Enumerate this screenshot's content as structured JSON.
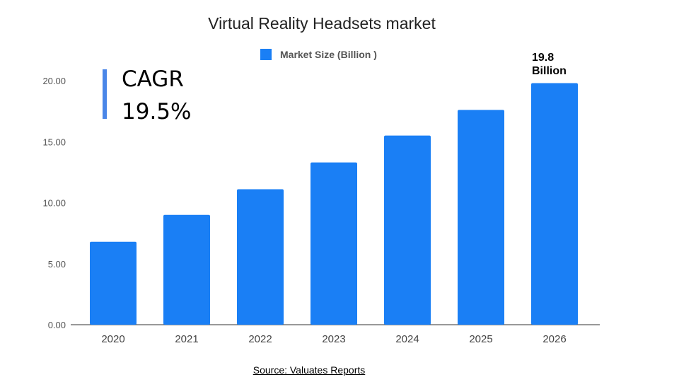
{
  "chart_data": {
    "type": "bar",
    "title": "Virtual Reality Headsets market",
    "categories": [
      "2020",
      "2021",
      "2022",
      "2023",
      "2024",
      "2025",
      "2026"
    ],
    "series": [
      {
        "name": "Market Size (Billion )",
        "values": [
          6.8,
          9.0,
          11.1,
          13.3,
          15.5,
          17.6,
          19.8
        ],
        "color": "#1a7ff5"
      }
    ],
    "yticks": [
      "0.00",
      "5.00",
      "10.00",
      "15.00",
      "20.00"
    ],
    "ylim": [
      0,
      20
    ],
    "grid": false,
    "legend": "top-center",
    "annotations": [
      {
        "category": "2026",
        "text_line1": "19.8",
        "text_line2": "Billion"
      }
    ],
    "cagr": {
      "label": "CAGR",
      "value": "19.5%",
      "accent": "#4a86e8"
    }
  },
  "source": "Source: Valuates Reports"
}
